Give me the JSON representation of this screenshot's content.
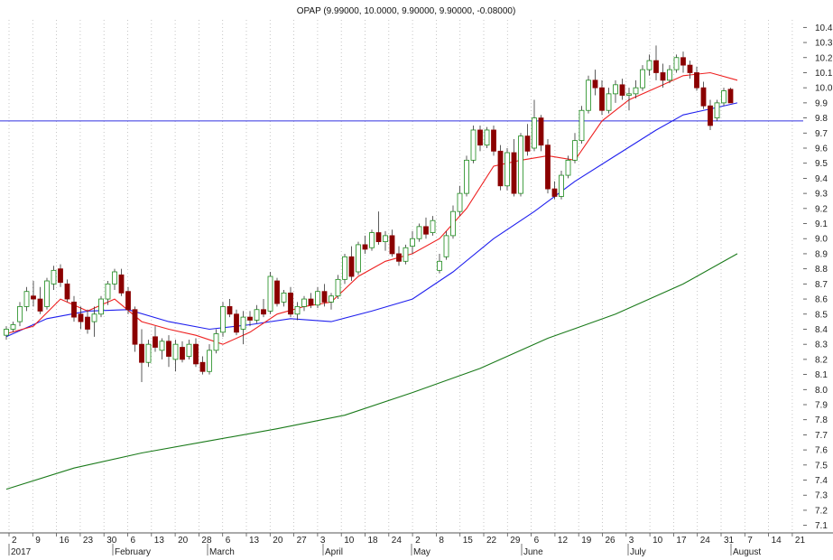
{
  "chart_data": {
    "type": "candlestick",
    "title": "OPAP (9.99000, 10.0000, 9.90000, 9.90000, -0.08000)",
    "symbol": "OPAP",
    "last_quote": {
      "open": 9.99,
      "high": 10.0,
      "low": 9.9,
      "close": 9.9,
      "change": -0.08
    },
    "ylim": [
      7.05,
      10.45
    ],
    "y_ticks": [
      "10.4",
      "10.3",
      "10.2",
      "10.1",
      "10.0",
      "9.9",
      "9.8",
      "9.7",
      "9.6",
      "9.5",
      "9.4",
      "9.3",
      "9.2",
      "9.1",
      "9.0",
      "8.9",
      "8.8",
      "8.7",
      "8.6",
      "8.5",
      "8.4",
      "8.3",
      "8.2",
      "8.1",
      "8.0",
      "7.9",
      "7.8",
      "7.7",
      "7.6",
      "7.5",
      "7.4",
      "7.3",
      "7.2",
      "7.1"
    ],
    "x_day_ticks": [
      "2",
      "9",
      "16",
      "23",
      "30",
      "6",
      "13",
      "20",
      "28",
      "6",
      "13",
      "20",
      "27",
      "3",
      "10",
      "18",
      "24",
      "2",
      "8",
      "15",
      "22",
      "29",
      "6",
      "12",
      "19",
      "26",
      "3",
      "10",
      "17",
      "24",
      "31",
      "7",
      "14",
      "21"
    ],
    "x_months": [
      "2017",
      "February",
      "March",
      "April",
      "May",
      "June",
      "July",
      "August"
    ],
    "horizontal_line": {
      "value": 9.78,
      "color": "#3030e0"
    },
    "grid": "vertical-dotted",
    "colors": {
      "up": "#1a8a1a",
      "down": "#8b0000",
      "ma_short": "#ee2020",
      "ma_mid": "#2020ee",
      "ma_long": "#1a7a1a"
    },
    "candles": [
      [
        8.36,
        8.42,
        8.33,
        8.4
      ],
      [
        8.4,
        8.45,
        8.38,
        8.43
      ],
      [
        8.45,
        8.58,
        8.42,
        8.55
      ],
      [
        8.55,
        8.68,
        8.52,
        8.65
      ],
      [
        8.62,
        8.72,
        8.55,
        8.6
      ],
      [
        8.6,
        8.68,
        8.5,
        8.52
      ],
      [
        8.55,
        8.74,
        8.53,
        8.72
      ],
      [
        8.7,
        8.82,
        8.66,
        8.79
      ],
      [
        8.8,
        8.83,
        8.68,
        8.71
      ],
      [
        8.7,
        8.73,
        8.58,
        8.6
      ],
      [
        8.58,
        8.62,
        8.45,
        8.48
      ],
      [
        8.5,
        8.55,
        8.4,
        8.45
      ],
      [
        8.48,
        8.53,
        8.37,
        8.4
      ],
      [
        8.45,
        8.55,
        8.35,
        8.5
      ],
      [
        8.5,
        8.62,
        8.48,
        8.6
      ],
      [
        8.6,
        8.72,
        8.56,
        8.7
      ],
      [
        8.7,
        8.8,
        8.66,
        8.78
      ],
      [
        8.76,
        8.8,
        8.62,
        8.64
      ],
      [
        8.65,
        8.68,
        8.5,
        8.53
      ],
      [
        8.53,
        8.55,
        8.25,
        8.3
      ],
      [
        8.3,
        8.4,
        8.05,
        8.18
      ],
      [
        8.18,
        8.33,
        8.15,
        8.3
      ],
      [
        8.35,
        8.42,
        8.25,
        8.28
      ],
      [
        8.26,
        8.34,
        8.2,
        8.32
      ],
      [
        8.32,
        8.36,
        8.15,
        8.22
      ],
      [
        8.2,
        8.33,
        8.12,
        8.3
      ],
      [
        8.28,
        8.32,
        8.18,
        8.2
      ],
      [
        8.22,
        8.33,
        8.2,
        8.3
      ],
      [
        8.3,
        8.34,
        8.15,
        8.17
      ],
      [
        8.18,
        8.22,
        8.1,
        8.12
      ],
      [
        8.12,
        8.3,
        8.1,
        8.26
      ],
      [
        8.26,
        8.4,
        8.24,
        8.37
      ],
      [
        8.38,
        8.58,
        8.35,
        8.55
      ],
      [
        8.55,
        8.6,
        8.48,
        8.5
      ],
      [
        8.5,
        8.53,
        8.36,
        8.38
      ],
      [
        8.4,
        8.52,
        8.3,
        8.48
      ],
      [
        8.48,
        8.52,
        8.42,
        8.46
      ],
      [
        8.46,
        8.56,
        8.44,
        8.53
      ],
      [
        8.53,
        8.6,
        8.48,
        8.5
      ],
      [
        8.52,
        8.78,
        8.5,
        8.75
      ],
      [
        8.72,
        8.74,
        8.55,
        8.57
      ],
      [
        8.58,
        8.66,
        8.55,
        8.64
      ],
      [
        8.64,
        8.68,
        8.48,
        8.5
      ],
      [
        8.5,
        8.58,
        8.46,
        8.55
      ],
      [
        8.55,
        8.62,
        8.52,
        8.6
      ],
      [
        8.6,
        8.64,
        8.54,
        8.56
      ],
      [
        8.56,
        8.68,
        8.54,
        8.65
      ],
      [
        8.65,
        8.7,
        8.55,
        8.58
      ],
      [
        8.58,
        8.64,
        8.53,
        8.62
      ],
      [
        8.62,
        8.76,
        8.6,
        8.73
      ],
      [
        8.73,
        8.9,
        8.7,
        8.88
      ],
      [
        8.88,
        8.95,
        8.72,
        8.75
      ],
      [
        8.78,
        8.98,
        8.76,
        8.96
      ],
      [
        8.96,
        9.02,
        8.9,
        8.93
      ],
      [
        8.94,
        9.06,
        8.92,
        9.04
      ],
      [
        9.04,
        9.18,
        8.96,
        8.98
      ],
      [
        8.98,
        9.05,
        8.92,
        9.02
      ],
      [
        9.02,
        9.06,
        8.88,
        8.9
      ],
      [
        8.9,
        8.95,
        8.82,
        8.85
      ],
      [
        8.85,
        8.96,
        8.83,
        8.94
      ],
      [
        8.95,
        9.05,
        8.9,
        9.0
      ],
      [
        9.0,
        9.1,
        8.98,
        9.08
      ],
      [
        9.08,
        9.14,
        9.0,
        9.03
      ],
      [
        9.04,
        9.15,
        9.02,
        9.12
      ],
      [
        8.79,
        8.9,
        8.77,
        8.85
      ],
      [
        8.88,
        9.05,
        8.86,
        9.02
      ],
      [
        9.02,
        9.22,
        9.0,
        9.18
      ],
      [
        9.18,
        9.35,
        9.15,
        9.3
      ],
      [
        9.3,
        9.55,
        9.28,
        9.52
      ],
      [
        9.52,
        9.75,
        9.5,
        9.72
      ],
      [
        9.72,
        9.75,
        9.58,
        9.62
      ],
      [
        9.62,
        9.74,
        9.6,
        9.72
      ],
      [
        9.72,
        9.75,
        9.55,
        9.58
      ],
      [
        9.58,
        9.62,
        9.32,
        9.35
      ],
      [
        9.35,
        9.6,
        9.32,
        9.57
      ],
      [
        9.57,
        9.66,
        9.28,
        9.3
      ],
      [
        9.3,
        9.7,
        9.28,
        9.68
      ],
      [
        9.68,
        9.76,
        9.55,
        9.58
      ],
      [
        9.6,
        9.92,
        9.58,
        9.8
      ],
      [
        9.8,
        9.82,
        9.58,
        9.62
      ],
      [
        9.62,
        9.66,
        9.3,
        9.33
      ],
      [
        9.33,
        9.38,
        9.26,
        9.28
      ],
      [
        9.28,
        9.45,
        9.26,
        9.42
      ],
      [
        9.42,
        9.55,
        9.4,
        9.52
      ],
      [
        9.52,
        9.7,
        9.5,
        9.65
      ],
      [
        9.65,
        9.88,
        9.63,
        9.85
      ],
      [
        9.85,
        10.08,
        9.83,
        10.05
      ],
      [
        10.05,
        10.12,
        9.95,
        10.0
      ],
      [
        10.0,
        10.05,
        9.82,
        9.85
      ],
      [
        9.85,
        10.0,
        9.83,
        9.96
      ],
      [
        9.96,
        10.05,
        9.9,
        10.02
      ],
      [
        10.02,
        10.06,
        9.92,
        9.95
      ],
      [
        9.95,
        10.0,
        9.85,
        9.96
      ],
      [
        9.96,
        10.05,
        9.93,
        10.0
      ],
      [
        10.0,
        10.15,
        9.98,
        10.12
      ],
      [
        10.12,
        10.22,
        10.08,
        10.18
      ],
      [
        10.18,
        10.28,
        10.05,
        10.1
      ],
      [
        10.1,
        10.16,
        10.0,
        10.05
      ],
      [
        10.05,
        10.15,
        10.03,
        10.12
      ],
      [
        10.12,
        10.22,
        10.1,
        10.2
      ],
      [
        10.2,
        10.24,
        10.1,
        10.15
      ],
      [
        10.15,
        10.18,
        10.06,
        10.1
      ],
      [
        10.1,
        10.14,
        9.98,
        10.0
      ],
      [
        10.0,
        10.04,
        9.86,
        9.88
      ],
      [
        9.88,
        9.92,
        9.72,
        9.75
      ],
      [
        9.8,
        9.92,
        9.78,
        9.9
      ],
      [
        9.9,
        10.0,
        9.88,
        9.98
      ],
      [
        9.99,
        10.0,
        9.9,
        9.9
      ]
    ],
    "ma_short": {
      "name": "",
      "points": [
        [
          0,
          8.37
        ],
        [
          4,
          8.42
        ],
        [
          8,
          8.6
        ],
        [
          12,
          8.52
        ],
        [
          16,
          8.6
        ],
        [
          20,
          8.45
        ],
        [
          24,
          8.4
        ],
        [
          28,
          8.36
        ],
        [
          32,
          8.3
        ],
        [
          36,
          8.38
        ],
        [
          40,
          8.5
        ],
        [
          44,
          8.55
        ],
        [
          48,
          8.58
        ],
        [
          52,
          8.75
        ],
        [
          56,
          8.85
        ],
        [
          60,
          8.9
        ],
        [
          64,
          9.0
        ],
        [
          68,
          9.2
        ],
        [
          72,
          9.48
        ],
        [
          76,
          9.52
        ],
        [
          80,
          9.55
        ],
        [
          84,
          9.52
        ],
        [
          88,
          9.78
        ],
        [
          92,
          9.92
        ],
        [
          96,
          10.0
        ],
        [
          100,
          10.08
        ],
        [
          104,
          10.1
        ],
        [
          108,
          10.05
        ]
      ]
    },
    "ma_mid": {
      "name": "",
      "points": [
        [
          0,
          8.35
        ],
        [
          6,
          8.47
        ],
        [
          12,
          8.52
        ],
        [
          18,
          8.53
        ],
        [
          24,
          8.45
        ],
        [
          30,
          8.4
        ],
        [
          36,
          8.43
        ],
        [
          42,
          8.47
        ],
        [
          48,
          8.45
        ],
        [
          54,
          8.52
        ],
        [
          60,
          8.6
        ],
        [
          66,
          8.78
        ],
        [
          72,
          9.0
        ],
        [
          78,
          9.18
        ],
        [
          84,
          9.38
        ],
        [
          90,
          9.55
        ],
        [
          96,
          9.72
        ],
        [
          100,
          9.82
        ],
        [
          104,
          9.86
        ],
        [
          108,
          9.9
        ]
      ]
    },
    "ma_long": {
      "name": "",
      "points": [
        [
          0,
          7.34
        ],
        [
          10,
          7.48
        ],
        [
          20,
          7.58
        ],
        [
          30,
          7.66
        ],
        [
          40,
          7.74
        ],
        [
          50,
          7.83
        ],
        [
          60,
          7.98
        ],
        [
          70,
          8.14
        ],
        [
          80,
          8.34
        ],
        [
          90,
          8.5
        ],
        [
          100,
          8.7
        ],
        [
          108,
          8.9
        ]
      ]
    }
  }
}
